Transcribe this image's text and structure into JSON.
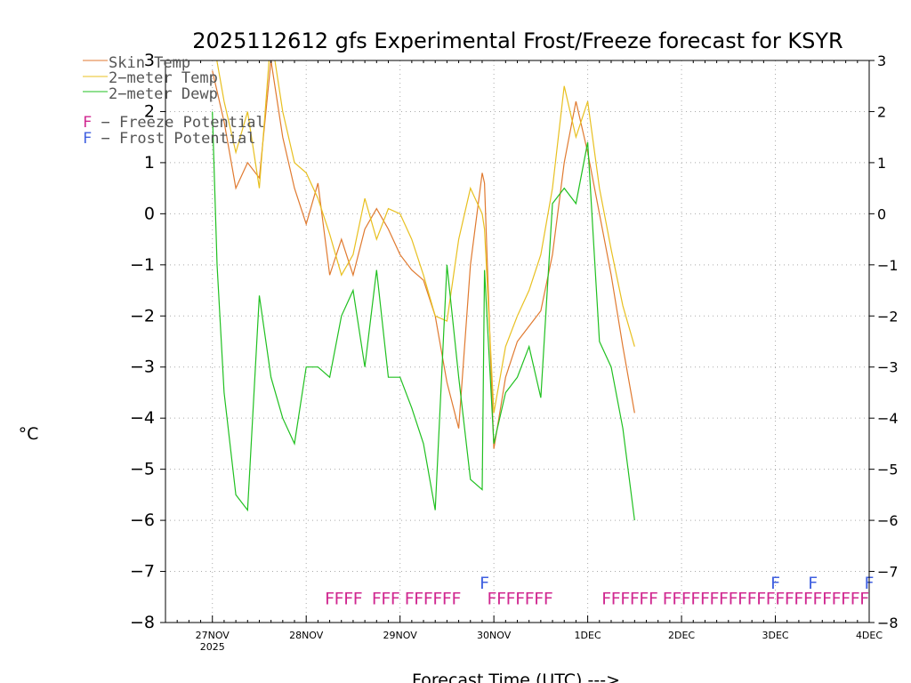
{
  "chart_data": {
    "type": "line",
    "title": "2025112612 gfs Experimental Frost/Freeze forecast for KSYR",
    "xlabel": "Forecast Time (UTC) --->",
    "ylabel": "°C",
    "ylim": [
      -8,
      3
    ],
    "xlim": [
      -0.5,
      7.0
    ],
    "yticks": [
      -8,
      -7,
      -6,
      -5,
      -4,
      -3,
      -2,
      -1,
      0,
      1,
      2,
      3
    ],
    "ytick_labels": [
      "−8",
      "−7",
      "−6",
      "−5",
      "−4",
      "−3",
      "−2",
      "−1",
      "0",
      "1",
      "2",
      "3"
    ],
    "xticks": [
      {
        "x": 0,
        "label": "27NOV",
        "sublabel": "2025"
      },
      {
        "x": 1,
        "label": "28NOV",
        "sublabel": ""
      },
      {
        "x": 2,
        "label": "29NOV",
        "sublabel": ""
      },
      {
        "x": 3,
        "label": "30NOV",
        "sublabel": ""
      },
      {
        "x": 4,
        "label": "1DEC",
        "sublabel": ""
      },
      {
        "x": 5,
        "label": "2DEC",
        "sublabel": ""
      },
      {
        "x": 6,
        "label": "3DEC",
        "sublabel": ""
      },
      {
        "x": 7,
        "label": "4DEC",
        "sublabel": ""
      }
    ],
    "grid": true,
    "legend_position": "top-left",
    "colors": {
      "skin": "#e07a30",
      "temp": "#e8c020",
      "dewp": "#20c020",
      "freeze": "#d02890",
      "frost": "#4060e0",
      "grid": "#aaaaaa",
      "axis": "#000000"
    },
    "series": [
      {
        "name": "Skin Temp",
        "color": "#e07a30",
        "x": [
          0.0,
          0.125,
          0.25,
          0.375,
          0.5,
          0.625,
          0.75,
          0.875,
          1.0,
          1.125,
          1.25,
          1.375,
          1.5,
          1.625,
          1.75,
          1.875,
          2.0,
          2.125,
          2.25,
          2.375,
          2.5,
          2.625,
          2.75,
          2.875,
          2.9,
          3.0,
          3.125,
          3.25,
          3.375,
          3.5,
          3.625,
          3.75,
          3.875,
          4.0,
          4.125,
          4.25,
          4.375,
          4.5
        ],
        "values": [
          2.8,
          1.8,
          0.5,
          1.0,
          0.7,
          3.0,
          1.5,
          0.5,
          -0.2,
          0.6,
          -1.2,
          -0.5,
          -1.2,
          -0.3,
          0.1,
          -0.3,
          -0.8,
          -1.1,
          -1.3,
          -2.0,
          -3.3,
          -4.2,
          -1.0,
          0.8,
          0.6,
          -4.6,
          -3.2,
          -2.5,
          -2.2,
          -1.9,
          -0.8,
          1.0,
          2.2,
          1.2,
          0.0,
          -1.2,
          -2.6,
          -3.9
        ]
      },
      {
        "name": "2-meter Temp",
        "color": "#e8c020",
        "x": [
          0.0,
          0.125,
          0.25,
          0.375,
          0.5,
          0.625,
          0.75,
          0.875,
          1.0,
          1.125,
          1.25,
          1.375,
          1.5,
          1.625,
          1.75,
          1.875,
          2.0,
          2.125,
          2.25,
          2.375,
          2.5,
          2.625,
          2.75,
          2.875,
          2.9,
          3.0,
          3.125,
          3.25,
          3.375,
          3.5,
          3.625,
          3.75,
          3.875,
          4.0,
          4.125,
          4.25,
          4.375,
          4.5
        ],
        "values": [
          3.5,
          2.2,
          1.2,
          2.0,
          0.5,
          3.5,
          2.0,
          1.0,
          0.8,
          0.3,
          -0.4,
          -1.2,
          -0.8,
          0.3,
          -0.5,
          0.1,
          0.0,
          -0.5,
          -1.2,
          -2.0,
          -2.1,
          -0.5,
          0.5,
          0.0,
          -0.3,
          -3.9,
          -2.6,
          -2.0,
          -1.5,
          -0.8,
          0.5,
          2.5,
          1.5,
          2.2,
          0.5,
          -0.7,
          -1.8,
          -2.6
        ]
      },
      {
        "name": "2-meter Dewp",
        "color": "#20c020",
        "x": [
          0.0,
          0.05,
          0.125,
          0.25,
          0.375,
          0.5,
          0.625,
          0.75,
          0.875,
          1.0,
          1.125,
          1.25,
          1.375,
          1.5,
          1.625,
          1.75,
          1.875,
          2.0,
          2.125,
          2.25,
          2.375,
          2.5,
          2.625,
          2.75,
          2.875,
          2.9,
          3.0,
          3.125,
          3.25,
          3.375,
          3.5,
          3.625,
          3.75,
          3.875,
          4.0,
          4.125,
          4.25,
          4.375,
          4.5
        ],
        "values": [
          2.0,
          -1.0,
          -3.5,
          -5.5,
          -5.8,
          -1.6,
          -3.2,
          -4.0,
          -4.5,
          -3.0,
          -3.0,
          -3.2,
          -2.0,
          -1.5,
          -3.0,
          -1.1,
          -3.2,
          -3.2,
          -3.8,
          -4.5,
          -5.8,
          -1.0,
          -3.2,
          -5.2,
          -5.4,
          -1.1,
          -4.5,
          -3.5,
          -3.2,
          -2.6,
          -3.6,
          0.2,
          0.5,
          0.2,
          1.4,
          -2.5,
          -3.0,
          -4.2,
          -6.0
        ]
      }
    ],
    "freeze_potential": {
      "label": "F",
      "segments": [
        [
          1.25,
          1.6
        ],
        [
          1.75,
          1.98
        ],
        [
          2.1,
          2.62
        ],
        [
          2.98,
          3.58
        ],
        [
          4.2,
          4.72
        ],
        [
          4.85,
          7.0
        ]
      ]
    },
    "frost_potential": {
      "label": "F",
      "x": [
        2.9,
        6.0,
        6.4,
        7.0
      ]
    }
  },
  "legend": {
    "skin": "Skin Temp",
    "temp": "2−meter Temp",
    "dewp": "2−meter Dewp",
    "freeze_prefix": "F",
    "freeze_text": " − Freeze Potential",
    "frost_prefix": "F",
    "frost_text": " − Frost Potential"
  }
}
